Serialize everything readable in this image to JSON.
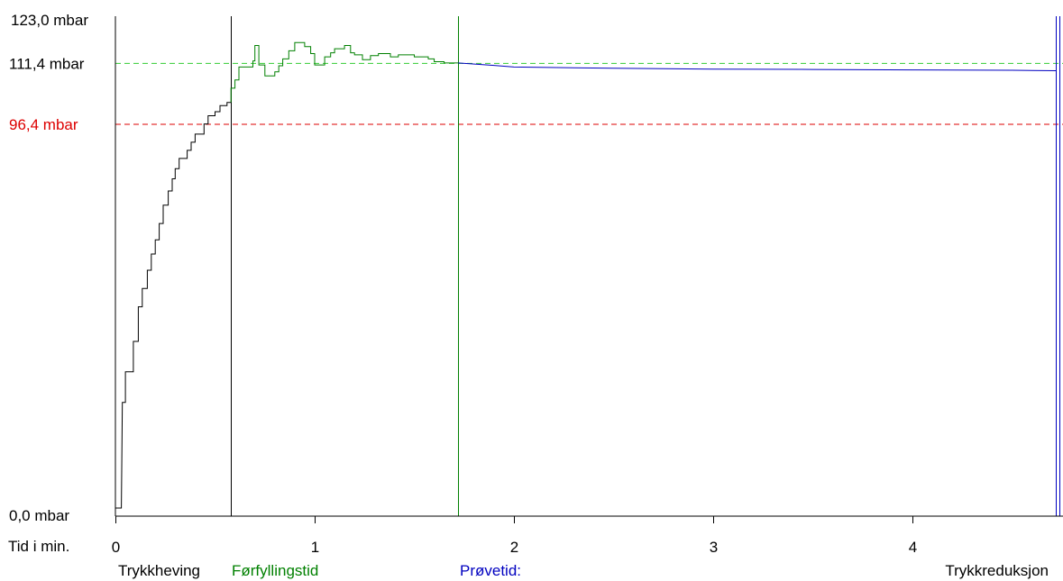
{
  "chart_data": {
    "type": "line",
    "title": "",
    "xlabel": "Tid i min.",
    "ylabel": "",
    "xlim": [
      0,
      4.75
    ],
    "ylim": [
      0,
      123.0
    ],
    "x_ticks": [
      "0",
      "1",
      "2",
      "3",
      "4"
    ],
    "y_axis_labels": {
      "top": "123,0 mbar",
      "bottom": "0,0 mbar"
    },
    "reference_lines": [
      {
        "label": "111,4 mbar",
        "value": 111.4,
        "color": "#33cc33",
        "style": "dashed"
      },
      {
        "label": "96,4 mbar",
        "value": 96.4,
        "color": "#dd0000",
        "style": "dashed"
      }
    ],
    "phases": [
      {
        "label": "Trykkheving",
        "start": 0,
        "end": 0.58,
        "color": "#000000"
      },
      {
        "label": "Førfyllingstid",
        "start": 0.58,
        "end": 1.72,
        "color": "#008000"
      },
      {
        "label": "Prøvetid:",
        "start": 1.72,
        "end": 4.72,
        "color": "#0000c0"
      },
      {
        "label": "Trykkreduksjon",
        "start": 4.72,
        "end": 4.75,
        "color": "#000000"
      }
    ],
    "series": [
      {
        "phase": "Trykkheving",
        "color": "#000000",
        "step": true,
        "points": [
          [
            0,
            2
          ],
          [
            0.03,
            2
          ],
          [
            0.035,
            28
          ],
          [
            0.05,
            28
          ],
          [
            0.05,
            35.5
          ],
          [
            0.09,
            35.5
          ],
          [
            0.09,
            43
          ],
          [
            0.115,
            43
          ],
          [
            0.115,
            51.5
          ],
          [
            0.135,
            51.5
          ],
          [
            0.135,
            56
          ],
          [
            0.16,
            56
          ],
          [
            0.16,
            60.5
          ],
          [
            0.18,
            60.5
          ],
          [
            0.18,
            64.5
          ],
          [
            0.2,
            64.5
          ],
          [
            0.2,
            68
          ],
          [
            0.22,
            68
          ],
          [
            0.22,
            72
          ],
          [
            0.24,
            72
          ],
          [
            0.24,
            76.5
          ],
          [
            0.265,
            76.5
          ],
          [
            0.265,
            80
          ],
          [
            0.285,
            80
          ],
          [
            0.285,
            83
          ],
          [
            0.3,
            83
          ],
          [
            0.3,
            85.5
          ],
          [
            0.32,
            85.5
          ],
          [
            0.32,
            88
          ],
          [
            0.36,
            88
          ],
          [
            0.36,
            90
          ],
          [
            0.38,
            90
          ],
          [
            0.38,
            92
          ],
          [
            0.4,
            92
          ],
          [
            0.4,
            94
          ],
          [
            0.445,
            94
          ],
          [
            0.445,
            96.5
          ],
          [
            0.465,
            96.5
          ],
          [
            0.465,
            98.5
          ],
          [
            0.5,
            98.5
          ],
          [
            0.5,
            99.5
          ],
          [
            0.525,
            99.5
          ],
          [
            0.525,
            101
          ],
          [
            0.56,
            101
          ],
          [
            0.56,
            101.8
          ],
          [
            0.58,
            101.8
          ]
        ]
      },
      {
        "phase": "Førfyllingstid",
        "color": "#008000",
        "step": true,
        "points": [
          [
            0.58,
            101.8
          ],
          [
            0.58,
            105.3
          ],
          [
            0.6,
            105.3
          ],
          [
            0.6,
            107.3
          ],
          [
            0.62,
            107.3
          ],
          [
            0.62,
            110.5
          ],
          [
            0.69,
            110.5
          ],
          [
            0.69,
            112
          ],
          [
            0.7,
            112
          ],
          [
            0.7,
            115.8
          ],
          [
            0.72,
            115.8
          ],
          [
            0.72,
            111
          ],
          [
            0.75,
            111
          ],
          [
            0.75,
            108.3
          ],
          [
            0.8,
            108.3
          ],
          [
            0.8,
            109.3
          ],
          [
            0.82,
            109.3
          ],
          [
            0.82,
            110.8
          ],
          [
            0.84,
            110.8
          ],
          [
            0.84,
            112.5
          ],
          [
            0.87,
            112.5
          ],
          [
            0.87,
            114.5
          ],
          [
            0.9,
            114.5
          ],
          [
            0.9,
            116.5
          ],
          [
            0.95,
            116.5
          ],
          [
            0.95,
            115.5
          ],
          [
            0.98,
            115.5
          ],
          [
            0.98,
            113.8
          ],
          [
            1.0,
            113.8
          ],
          [
            1.0,
            111
          ],
          [
            1.05,
            111
          ],
          [
            1.05,
            113
          ],
          [
            1.08,
            113
          ],
          [
            1.08,
            114
          ],
          [
            1.1,
            114
          ],
          [
            1.1,
            115
          ],
          [
            1.15,
            115
          ],
          [
            1.15,
            115.8
          ],
          [
            1.18,
            115.8
          ],
          [
            1.18,
            114
          ],
          [
            1.2,
            114
          ],
          [
            1.2,
            113.5
          ],
          [
            1.24,
            113.5
          ],
          [
            1.24,
            112.3
          ],
          [
            1.28,
            112.3
          ],
          [
            1.28,
            113.3
          ],
          [
            1.32,
            113.3
          ],
          [
            1.32,
            113.8
          ],
          [
            1.38,
            113.8
          ],
          [
            1.38,
            113
          ],
          [
            1.42,
            113
          ],
          [
            1.42,
            113.5
          ],
          [
            1.5,
            113.5
          ],
          [
            1.5,
            113
          ],
          [
            1.57,
            113
          ],
          [
            1.57,
            112.5
          ],
          [
            1.6,
            112.5
          ],
          [
            1.6,
            111.8
          ],
          [
            1.65,
            111.8
          ],
          [
            1.65,
            111.5
          ],
          [
            1.72,
            111.5
          ]
        ]
      },
      {
        "phase": "Prøvetid:",
        "color": "#0000c0",
        "step": false,
        "points": [
          [
            1.72,
            111.5
          ],
          [
            1.9,
            110.9
          ],
          [
            2.0,
            110.5
          ],
          [
            2.5,
            110.2
          ],
          [
            3.0,
            110.0
          ],
          [
            3.5,
            109.9
          ],
          [
            4.0,
            109.8
          ],
          [
            4.5,
            109.7
          ],
          [
            4.72,
            109.6
          ]
        ]
      }
    ]
  }
}
